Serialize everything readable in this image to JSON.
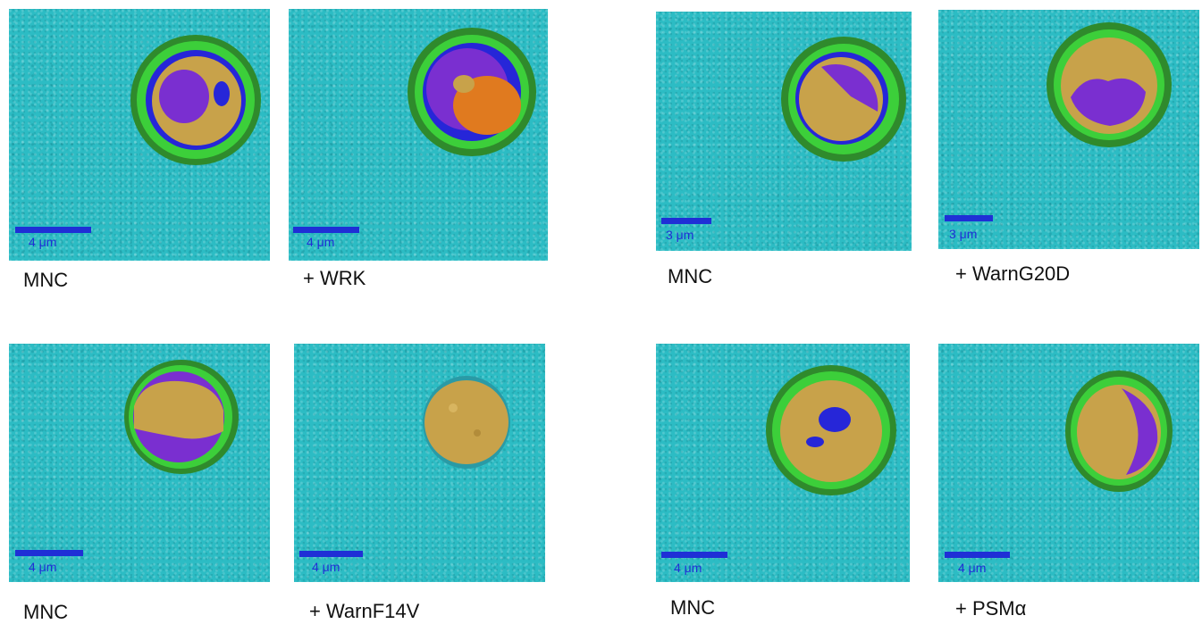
{
  "panels": [
    {
      "caption": "MNC",
      "scale": "4 μm"
    },
    {
      "caption": "+ WRK",
      "scale": "4 μm"
    },
    {
      "caption": "MNC",
      "scale": "3 μm"
    },
    {
      "caption": "+ WarnG20D",
      "scale": "3 μm"
    },
    {
      "caption": "MNC",
      "scale": "4 μm"
    },
    {
      "caption": "+ WarnF14V",
      "scale": "4 μm"
    },
    {
      "caption": "MNC",
      "scale": "4 μm"
    },
    {
      "caption": "+ PSMα",
      "scale": "4 μm"
    }
  ],
  "colors": {
    "background": "#2cbcc4",
    "membrane_outer": "#2f8a2c",
    "membrane": "#3ccf3a",
    "interior_gold": "#c8a24a",
    "interior_purple": "#7a2fd0",
    "interior_blue": "#2626d8",
    "interior_orange": "#e07a1f",
    "scale_bar": "#1f2fd6"
  }
}
